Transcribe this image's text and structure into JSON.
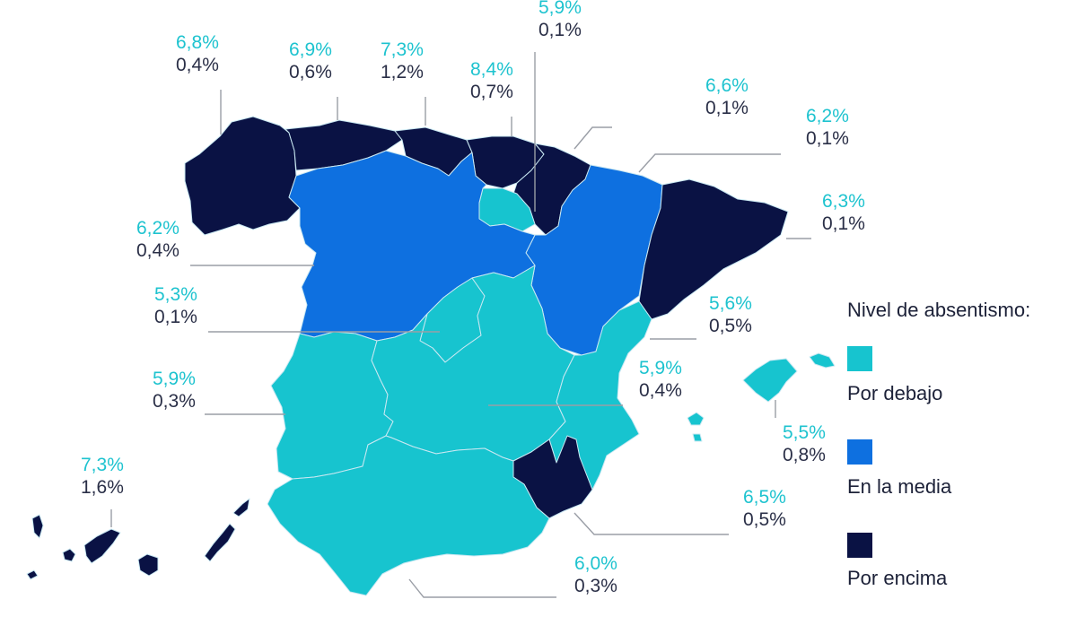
{
  "colors": {
    "below": "#17c4cf",
    "average": "#0e70e0",
    "above": "#0a1244",
    "border": "#c9e8f2",
    "leader": "#9a9ea6"
  },
  "legend": {
    "title": "Nivel de absentismo:",
    "items": [
      {
        "label": "Por debajo",
        "level": "below"
      },
      {
        "label": "En la media",
        "level": "average"
      },
      {
        "label": "Por encima",
        "level": "above"
      }
    ]
  },
  "regions": {
    "galicia": {
      "top": "6,8%",
      "bottom": "0,4%",
      "level": "above"
    },
    "asturias": {
      "top": "6,9%",
      "bottom": "0,6%",
      "level": "above"
    },
    "cantabria": {
      "top": "7,3%",
      "bottom": "1,2%",
      "level": "above"
    },
    "pais_vasco": {
      "top": "8,4%",
      "bottom": "0,7%",
      "level": "above"
    },
    "la_rioja": {
      "top": "5,9%",
      "bottom": "0,1%",
      "level": "below"
    },
    "navarra": {
      "top": "6,6%",
      "bottom": "0,1%",
      "level": "above"
    },
    "aragon": {
      "top": "6,2%",
      "bottom": "0,1%",
      "level": "average"
    },
    "cataluna": {
      "top": "6,3%",
      "bottom": "0,1%",
      "level": "above"
    },
    "castilla_leon": {
      "top": "6,2%",
      "bottom": "0,4%",
      "level": "average"
    },
    "madrid": {
      "top": "5,3%",
      "bottom": "0,1%",
      "level": "below"
    },
    "valencia": {
      "top": "5,6%",
      "bottom": "0,5%",
      "level": "below"
    },
    "castilla_la_mancha": {
      "top": "5,9%",
      "bottom": "0,4%",
      "level": "below"
    },
    "extremadura": {
      "top": "5,9%",
      "bottom": "0,3%",
      "level": "below"
    },
    "baleares": {
      "top": "5,5%",
      "bottom": "0,8%",
      "level": "below"
    },
    "canarias": {
      "top": "7,3%",
      "bottom": "1,6%",
      "level": "above"
    },
    "murcia": {
      "top": "6,5%",
      "bottom": "0,5%",
      "level": "above"
    },
    "andalucia": {
      "top": "6,0%",
      "bottom": "0,3%",
      "level": "below"
    }
  }
}
